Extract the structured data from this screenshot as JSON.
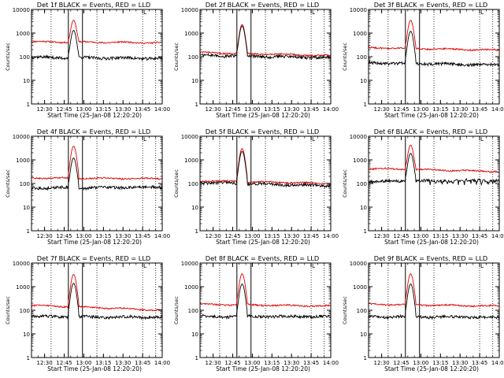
{
  "chart_data": {
    "type": "line",
    "time_axis": {
      "range_hours": [
        12.333,
        14.0
      ],
      "ticks": [
        {
          "t": 12.5,
          "label": "12:30"
        },
        {
          "t": 12.75,
          "label": "12:45"
        },
        {
          "t": 13.0,
          "label": "13:00"
        },
        {
          "t": 13.25,
          "label": "13:15"
        },
        {
          "t": 13.5,
          "label": "13:30"
        },
        {
          "t": 13.75,
          "label": "13:45"
        },
        {
          "t": 14.0,
          "label": "14:00"
        }
      ],
      "xlabel": "Start Time (25-Jan-08 12:20:20)"
    },
    "y_axis": {
      "scale": "log",
      "range": [
        1,
        10000
      ],
      "ticks": [
        {
          "v": 1,
          "label": "1"
        },
        {
          "v": 10,
          "label": "10"
        },
        {
          "v": 100,
          "label": "100"
        },
        {
          "v": 1000,
          "label": "1000"
        },
        {
          "v": 10000,
          "label": "10000"
        }
      ],
      "ylabel": "Counts/sec"
    },
    "markers": {
      "dotted_times": [
        12.583,
        13.167,
        13.75,
        13.917
      ],
      "solid_times": [
        12.803,
        12.983
      ],
      "label": "L"
    },
    "legend": {
      "events": "BLACK = Events",
      "lld": "RED = LLD"
    },
    "series_colors": {
      "events": "#000000",
      "lld": "#e00000"
    },
    "peak_time": 12.87,
    "panels": [
      {
        "title": "Det 1f  BLACK = Events, RED = LLD",
        "events": {
          "base": 95,
          "peak": 1300,
          "end": 85
        },
        "lld": {
          "base": 430,
          "peak": 3500,
          "end": 390
        }
      },
      {
        "title": "Det 2f  BLACK = Events, RED = LLD",
        "events": {
          "base": 115,
          "peak": 2000,
          "end": 90
        },
        "lld": {
          "base": 150,
          "peak": 2300,
          "end": 110
        }
      },
      {
        "title": "Det 3f  BLACK = Events, RED = LLD",
        "events": {
          "base": 55,
          "peak": 1200,
          "end": 45
        },
        "lld": {
          "base": 240,
          "peak": 3500,
          "end": 190
        }
      },
      {
        "title": "Det 4f  BLACK = Events, RED = LLD",
        "events": {
          "base": 65,
          "peak": 1200,
          "end": 70
        },
        "lld": {
          "base": 170,
          "peak": 3800,
          "end": 160
        }
      },
      {
        "title": "Det 5f  BLACK = Events, RED = LLD",
        "events": {
          "base": 110,
          "peak": 2300,
          "end": 80
        },
        "lld": {
          "base": 130,
          "peak": 3000,
          "end": 100
        }
      },
      {
        "title": "Det 6f  BLACK = Events, RED = LLD",
        "events": {
          "base": 120,
          "peak": 1900,
          "end": 140
        },
        "lld": {
          "base": 430,
          "peak": 4200,
          "end": 320
        }
      },
      {
        "title": "Det 7f  BLACK = Events, RED = LLD",
        "events": {
          "base": 55,
          "peak": 1400,
          "end": 50
        },
        "lld": {
          "base": 160,
          "peak": 3300,
          "end": 100
        }
      },
      {
        "title": "Det 8f  BLACK = Events, RED = LLD",
        "events": {
          "base": 55,
          "peak": 1300,
          "end": 55
        },
        "lld": {
          "base": 180,
          "peak": 3500,
          "end": 150
        }
      },
      {
        "title": "Det 9f  BLACK = Events, RED = LLD",
        "events": {
          "base": 55,
          "peak": 1300,
          "end": 50
        },
        "lld": {
          "base": 180,
          "peak": 3500,
          "end": 150
        }
      }
    ]
  }
}
